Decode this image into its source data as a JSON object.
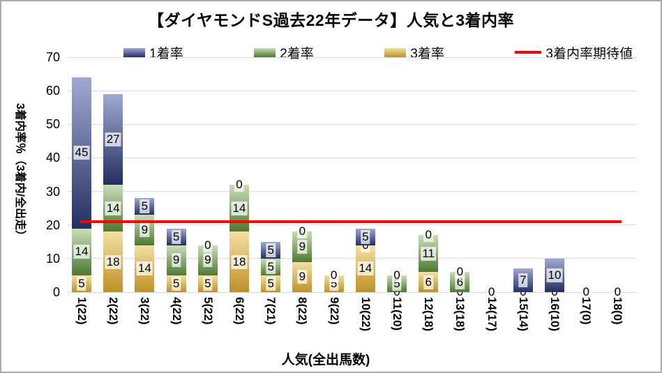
{
  "title": "【ダイヤモンドS過去22年データ】人気と3着内率",
  "legend": {
    "items": [
      {
        "label": "1着率",
        "swatch": "blue"
      },
      {
        "label": "2着率",
        "swatch": "green"
      },
      {
        "label": "3着率",
        "swatch": "gold"
      },
      {
        "label": "3着内率期待値",
        "swatch": "redline"
      }
    ]
  },
  "colors": {
    "blue_top": "#9FA9D0",
    "blue_bottom": "#232F61",
    "green_top": "#C9DDB9",
    "green_bottom": "#4D7932",
    "gold_top": "#F2E0A4",
    "gold_bottom": "#BE9125",
    "expected_line": "#FF0000",
    "gridline": "#D9D9D9",
    "frame_border": "#ABABAB"
  },
  "chart_data": {
    "type": "bar",
    "stacked": true,
    "title": "【ダイヤモンドS過去22年データ】人気と3着内率",
    "categories": [
      "1(22)",
      "2(22)",
      "3(22)",
      "4(22)",
      "5(22)",
      "6(22)",
      "7(21)",
      "8(22)",
      "9(22)",
      "10(22)",
      "11(20)",
      "12(18)",
      "13(18)",
      "14(17)",
      "15(14)",
      "16(10)",
      "17(0)",
      "18(0)"
    ],
    "series": [
      {
        "name": "3着率",
        "color": "gold",
        "values": [
          5,
          18,
          14,
          5,
          5,
          18,
          5,
          9,
          5,
          14,
          0,
          6,
          0,
          0,
          0,
          0,
          0,
          0
        ]
      },
      {
        "name": "2着率",
        "color": "green",
        "values": [
          14,
          14,
          9,
          9,
          9,
          14,
          5,
          9,
          0,
          0,
          5,
          11,
          6,
          0,
          0,
          0,
          0,
          0
        ]
      },
      {
        "name": "1着率",
        "color": "blue",
        "values": [
          45,
          27,
          5,
          5,
          0,
          0,
          5,
          0,
          0,
          5,
          0,
          0,
          0,
          0,
          7,
          10,
          0,
          0
        ]
      }
    ],
    "stack_order_note": "series listed bottom-to-top",
    "expected_line": {
      "name": "3着内率期待値",
      "value": 21
    },
    "ylabel": "3着内率％（3着内/全出走）",
    "xlabel": "人気(全出馬数)",
    "ylim": [
      0,
      70
    ],
    "yticks": [
      0,
      10,
      20,
      30,
      40,
      50,
      60,
      70
    ],
    "grid": true,
    "legend_position": "top",
    "data_labels": true
  }
}
